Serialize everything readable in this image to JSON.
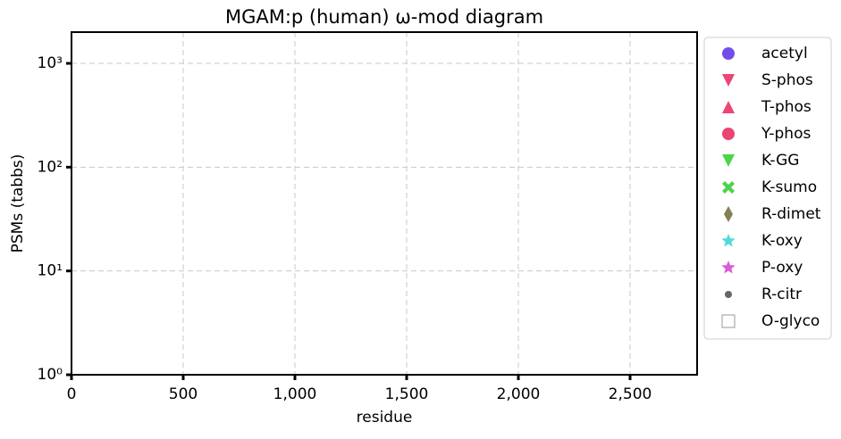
{
  "chart_data": {
    "type": "scatter",
    "title": "MGAM:p (human) ω-mod diagram",
    "x_label": "residue",
    "y_label": "PSMs (tabbs)",
    "xlim": [
      0,
      2800
    ],
    "xticks": [
      0,
      500,
      {
        "value": 1000,
        "label": "1,000"
      },
      {
        "value": 1500,
        "label": "1,500"
      },
      {
        "value": 2000,
        "label": "2,000"
      },
      {
        "value": 2500,
        "label": "2,500"
      }
    ],
    "ylim": [
      1,
      2000
    ],
    "log_y": true,
    "yticks": [
      {
        "value": 1,
        "label": "10⁰"
      },
      {
        "value": 10,
        "label": "10¹"
      },
      {
        "value": 100,
        "label": "10²"
      },
      {
        "value": 1000,
        "label": "10³"
      }
    ],
    "grid": true,
    "legend": "outside right",
    "series": [
      {
        "name": "acetyl",
        "color": "#5a2ee6",
        "marker": "circle",
        "x": [],
        "values": []
      },
      {
        "name": "S-phos",
        "color": "#e8245a",
        "marker": "triangle-down",
        "x": [],
        "values": []
      },
      {
        "name": "T-phos",
        "color": "#e8245a",
        "marker": "triangle-up",
        "x": [],
        "values": []
      },
      {
        "name": "Y-phos",
        "color": "#e8245a",
        "marker": "circle",
        "x": [],
        "values": []
      },
      {
        "name": "K-GG",
        "color": "#2ecc2e",
        "marker": "triangle-down",
        "x": [],
        "values": []
      },
      {
        "name": "K-sumo",
        "color": "#2ecc2e",
        "marker": "x",
        "x": [],
        "values": []
      },
      {
        "name": "R-dimet",
        "color": "#6b6a3a",
        "marker": "diamond",
        "x": [],
        "values": []
      },
      {
        "name": "K-oxy",
        "color": "#2ed4d4",
        "marker": "star",
        "x": [],
        "values": []
      },
      {
        "name": "P-oxy",
        "color": "#d23ed2",
        "marker": "star",
        "x": [],
        "values": []
      },
      {
        "name": "R-citr",
        "color": "#666666",
        "marker": "dot",
        "x": [],
        "values": []
      },
      {
        "name": "O-glyco",
        "color": "#999999",
        "marker": "square-open",
        "x": [],
        "values": []
      }
    ]
  }
}
